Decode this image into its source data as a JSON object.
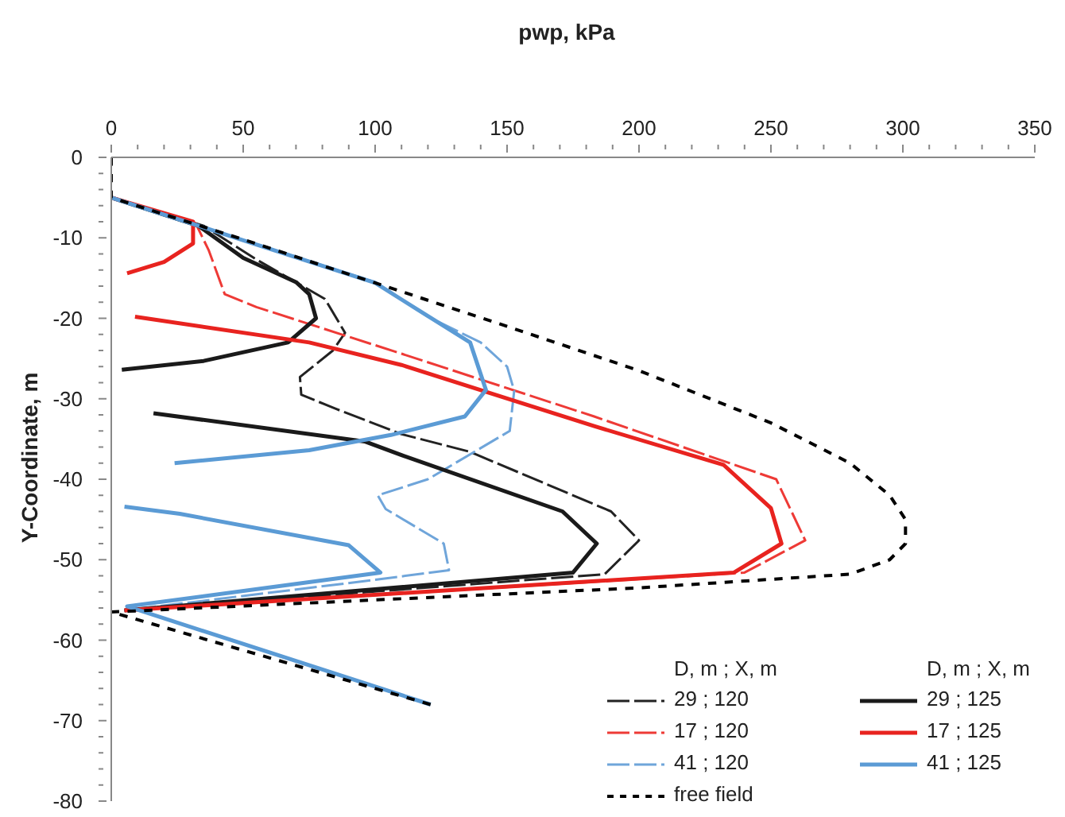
{
  "chart_data": {
    "type": "line",
    "xlabel": "pwp, kPa",
    "ylabel": "Y-Coordinate, m",
    "legend_title": "D, m ; X, m",
    "legend": "bottom right",
    "grid": false,
    "marker": "none",
    "xlim": [
      0,
      350
    ],
    "xticks": [
      0,
      {
        "value": 10,
        "label": null
      },
      {
        "value": 20,
        "label": null
      },
      {
        "value": 30,
        "label": null
      },
      {
        "value": 40,
        "label": null
      },
      50,
      {
        "value": 60,
        "label": null
      },
      {
        "value": 70,
        "label": null
      },
      {
        "value": 80,
        "label": null
      },
      {
        "value": 90,
        "label": null
      },
      100,
      {
        "value": 110,
        "label": null
      },
      {
        "value": 120,
        "label": null
      },
      {
        "value": 130,
        "label": null
      },
      {
        "value": 140,
        "label": null
      },
      150,
      {
        "value": 160,
        "label": null
      },
      {
        "value": 170,
        "label": null
      },
      {
        "value": 180,
        "label": null
      },
      {
        "value": 190,
        "label": null
      },
      200,
      {
        "value": 210,
        "label": null
      },
      {
        "value": 220,
        "label": null
      },
      {
        "value": 230,
        "label": null
      },
      {
        "value": 240,
        "label": null
      },
      250,
      {
        "value": 260,
        "label": null
      },
      {
        "value": 270,
        "label": null
      },
      {
        "value": 280,
        "label": null
      },
      {
        "value": 290,
        "label": null
      },
      300,
      {
        "value": 310,
        "label": null
      },
      {
        "value": 320,
        "label": null
      },
      {
        "value": 330,
        "label": null
      },
      {
        "value": 340,
        "label": null
      },
      350
    ],
    "ylim": [
      -80,
      0
    ],
    "yticks": [
      0,
      {
        "value": -2,
        "label": null
      },
      {
        "value": -4,
        "label": null
      },
      {
        "value": -6,
        "label": null
      },
      {
        "value": -8,
        "label": null
      },
      -10,
      {
        "value": -12,
        "label": null
      },
      {
        "value": -14,
        "label": null
      },
      {
        "value": -16,
        "label": null
      },
      {
        "value": -18,
        "label": null
      },
      -20,
      {
        "value": -22,
        "label": null
      },
      {
        "value": -24,
        "label": null
      },
      {
        "value": -26,
        "label": null
      },
      {
        "value": -28,
        "label": null
      },
      -30,
      {
        "value": -32,
        "label": null
      },
      {
        "value": -34,
        "label": null
      },
      {
        "value": -36,
        "label": null
      },
      {
        "value": -38,
        "label": null
      },
      -40,
      {
        "value": -42,
        "label": null
      },
      {
        "value": -44,
        "label": null
      },
      {
        "value": -46,
        "label": null
      },
      {
        "value": -48,
        "label": null
      },
      -50,
      {
        "value": -52,
        "label": null
      },
      {
        "value": -54,
        "label": null
      },
      {
        "value": -56,
        "label": null
      },
      {
        "value": -58,
        "label": null
      },
      -60,
      {
        "value": -62,
        "label": null
      },
      {
        "value": -64,
        "label": null
      },
      {
        "value": -66,
        "label": null
      },
      {
        "value": -68,
        "label": null
      },
      -70,
      {
        "value": -72,
        "label": null
      },
      {
        "value": -74,
        "label": null
      },
      {
        "value": -76,
        "label": null
      },
      {
        "value": -78,
        "label": null
      },
      -80
    ],
    "series": [
      {
        "name": "29 ; 120",
        "color": "#222222",
        "line_style": "dashed",
        "x": [
          0,
          35,
          55,
          81,
          88.6,
          84,
          71.5,
          72,
          85.5,
          110,
          136,
          189.4,
          200,
          187,
          5
        ],
        "values": [
          -5,
          -8.5,
          -12.7,
          -17.6,
          -21.8,
          -24,
          -27.3,
          -29.5,
          -31.3,
          -34.4,
          -36.6,
          -44,
          -47.6,
          -51.8,
          -56.3
        ]
      },
      {
        "name": "17 ; 120",
        "color": "#ee3a36",
        "line_style": "dashed",
        "x": [
          0,
          32,
          37,
          43,
          55,
          110,
          183,
          252,
          263,
          240,
          5
        ],
        "values": [
          -5,
          -8.2,
          -11.6,
          -17,
          -18.6,
          -24.4,
          -32.2,
          -40,
          -47.6,
          -51.6,
          -56.3
        ]
      },
      {
        "name": "41 ; 120",
        "color": "#6fa5da",
        "line_style": "dashed",
        "x": [
          0,
          50,
          100,
          120,
          140,
          150,
          152.7,
          151,
          120,
          101,
          104,
          126,
          128,
          100,
          5
        ],
        "values": [
          -5,
          -10.3,
          -15.5,
          -19.8,
          -23,
          -26,
          -29,
          -34,
          -40,
          -42,
          -43.7,
          -48,
          -51.3,
          -52.5,
          -56.3
        ]
      },
      {
        "name": "free field",
        "color": "#000000",
        "line_style": "dotted",
        "x": [
          0,
          0,
          50,
          100,
          150,
          200,
          250,
          280,
          295,
          301,
          301,
          295,
          280,
          200,
          100,
          0,
          121
        ],
        "values": [
          0,
          -5,
          -10.2,
          -15.6,
          -21,
          -26.5,
          -33,
          -38,
          -42,
          -45,
          -48,
          -50,
          -51.8,
          -53.5,
          -55,
          -56.5,
          -68
        ]
      },
      {
        "name": "29 ; 125",
        "color": "#1a1a1a",
        "line_style": "solid",
        "x": [
          0,
          33,
          50,
          70,
          75,
          77.6,
          67,
          35,
          4,
          null,
          16,
          96,
          110,
          171,
          184,
          175,
          5
        ],
        "values": [
          -5,
          -8.5,
          -12.5,
          -15.5,
          -17,
          -20,
          -23,
          -25.3,
          -26.4,
          null,
          -31.8,
          -35.3,
          -37,
          -44,
          -48,
          -51.6,
          -56.3
        ]
      },
      {
        "name": "17 ; 125",
        "color": "#e8231f",
        "line_style": "solid",
        "x": [
          0,
          31,
          31,
          20,
          6,
          null,
          9,
          75,
          110,
          183,
          232,
          250,
          254,
          236,
          5
        ],
        "values": [
          -5,
          -8,
          -10.7,
          -13,
          -14.4,
          null,
          -19.8,
          -23,
          -25.8,
          -33.4,
          -38.2,
          -43.6,
          -48,
          -51.6,
          -56.3
        ]
      },
      {
        "name": "41 ; 125",
        "color": "#5b9bd5",
        "line_style": "solid",
        "x": [
          0,
          50,
          100,
          116,
          136,
          142,
          134,
          106,
          75,
          24,
          null,
          5,
          26,
          90,
          102,
          6,
          121
        ],
        "values": [
          -5,
          -10.3,
          -15.6,
          -18.9,
          -23,
          -28.9,
          -32.2,
          -34.5,
          -36.4,
          -38,
          null,
          -43.4,
          -44.3,
          -48.2,
          -51.6,
          -55.8,
          -68
        ]
      }
    ]
  }
}
